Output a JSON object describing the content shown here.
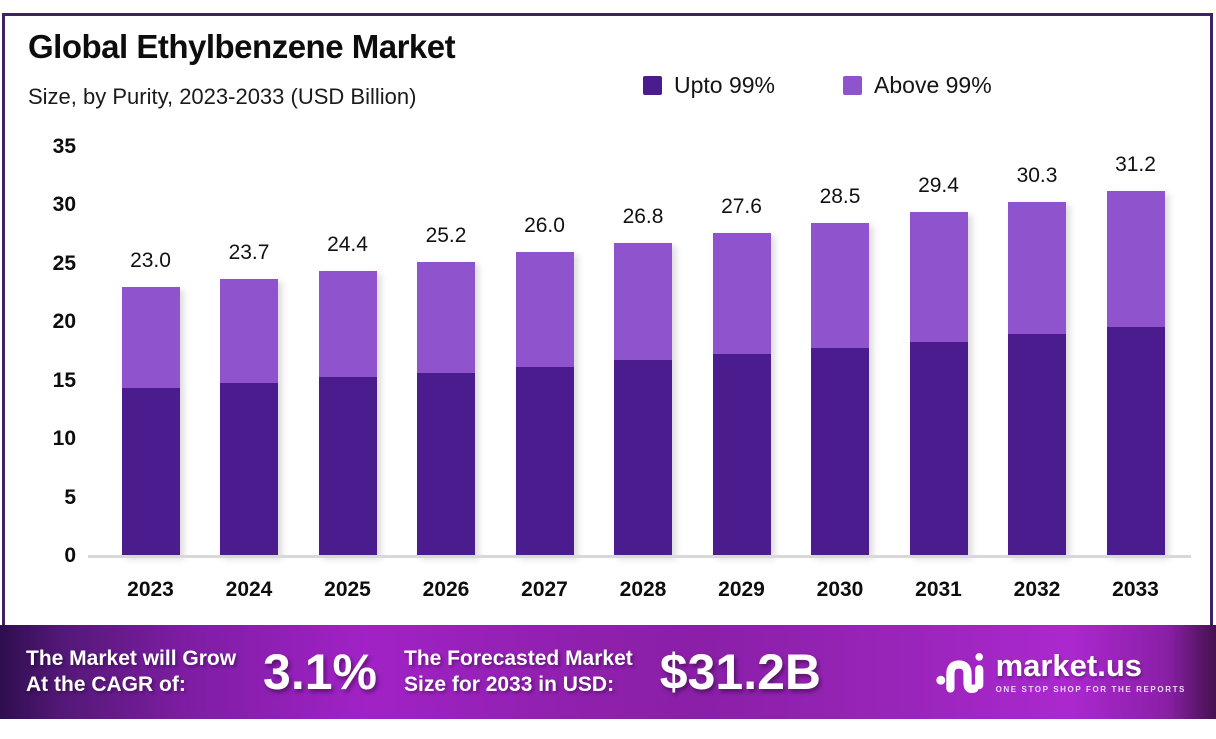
{
  "header": {
    "title": "Global Ethylbenzene Market",
    "subtitle": "Size, by Purity, 2023-2033 (USD Billion)"
  },
  "legend": {
    "items": [
      {
        "label": "Upto 99%",
        "color": "#4b1c8e"
      },
      {
        "label": "Above 99%",
        "color": "#8e53cd"
      }
    ]
  },
  "chart_data": {
    "type": "bar",
    "stacked": true,
    "title": "Global Ethylbenzene Market Size, by Purity, 2023-2033 (USD Billion)",
    "categories": [
      "2023",
      "2024",
      "2025",
      "2026",
      "2027",
      "2028",
      "2029",
      "2030",
      "2031",
      "2032",
      "2033"
    ],
    "series": [
      {
        "name": "Upto 99%",
        "color": "#4b1c8e",
        "values": [
          14.4,
          14.8,
          15.3,
          15.7,
          16.2,
          16.8,
          17.3,
          17.8,
          18.3,
          19.0,
          19.6
        ]
      },
      {
        "name": "Above 99%",
        "color": "#8e53cd",
        "values": [
          8.6,
          8.9,
          9.1,
          9.5,
          9.8,
          10.0,
          10.3,
          10.7,
          11.1,
          11.3,
          11.6
        ]
      }
    ],
    "totals": [
      23.0,
      23.7,
      24.4,
      25.2,
      26.0,
      26.8,
      27.6,
      28.5,
      29.4,
      30.3,
      31.2
    ],
    "total_labels": [
      "23.0",
      "23.7",
      "24.4",
      "25.2",
      "26.0",
      "26.8",
      "27.6",
      "28.5",
      "29.4",
      "30.3",
      "31.2"
    ],
    "xlabel": "",
    "ylabel": "",
    "ylim": [
      0,
      35
    ],
    "yticks": [
      0,
      5,
      10,
      15,
      20,
      25,
      30,
      35
    ],
    "grid": false,
    "legend_position": "top-right"
  },
  "banner": {
    "cagr_label_line1": "The Market will Grow",
    "cagr_label_line2": "At the CAGR of:",
    "cagr_value": "3.1%",
    "forecast_label_line1": "The Forecasted Market",
    "forecast_label_line2": "Size for 2033 in USD:",
    "forecast_value": "$31.2B",
    "logo_text": "market.us",
    "logo_tagline": "ONE STOP SHOP FOR THE REPORTS"
  },
  "colors": {
    "upto_99": "#4b1c8e",
    "above_99": "#8e53cd",
    "frame_border": "#3d2366",
    "axis_line": "#d8d8d8",
    "banner_left": "#2e0d4e",
    "banner_mid": "#9a22bd",
    "banner_right": "#45114f",
    "text": "#0d0d0d",
    "banner_text": "#ffffff"
  }
}
